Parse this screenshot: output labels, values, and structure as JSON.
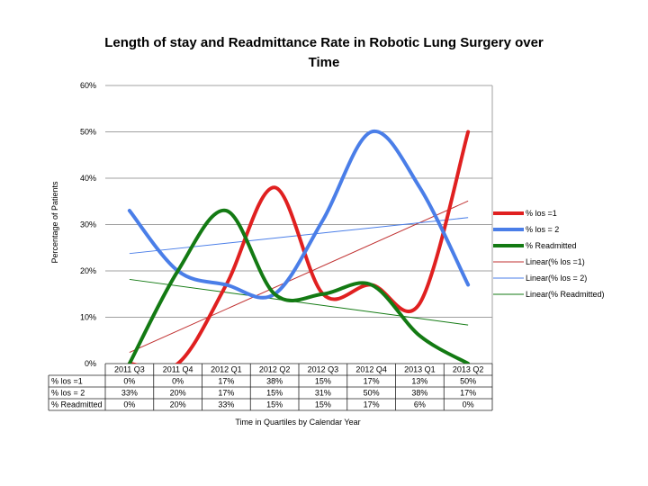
{
  "chart_data": {
    "type": "line",
    "title_line1": "Length of stay and Readmittance Rate in Robotic Lung Surgery over",
    "title_line2": "Time",
    "ylabel": "Percentage of Patients",
    "xlabel": "Time in Quartiles by Calendar Year",
    "ylim": [
      0,
      60
    ],
    "yticks": [
      "0%",
      "10%",
      "20%",
      "30%",
      "40%",
      "50%",
      "60%"
    ],
    "categories": [
      "2011 Q3",
      "2011 Q4",
      "2012 Q1",
      "2012 Q2",
      "2012 Q3",
      "2012 Q4",
      "2013 Q1",
      "2013 Q2"
    ],
    "series": [
      {
        "name": "% los =1",
        "color": "#e02020",
        "values": [
          0,
          0,
          17,
          38,
          15,
          17,
          13,
          50
        ],
        "table": [
          "0%",
          "0%",
          "17%",
          "38%",
          "15%",
          "17%",
          "13%",
          "50%"
        ]
      },
      {
        "name": "% los = 2",
        "color": "#4a7ee8",
        "values": [
          33,
          20,
          17,
          15,
          31,
          50,
          38,
          17
        ],
        "table": [
          "33%",
          "20%",
          "17%",
          "15%",
          "31%",
          "50%",
          "38%",
          "17%"
        ]
      },
      {
        "name": "% Readmitted",
        "color": "#137a13",
        "values": [
          0,
          20,
          33,
          15,
          15,
          17,
          6,
          0
        ],
        "table": [
          "0%",
          "20%",
          "33%",
          "15%",
          "15%",
          "17%",
          "6%",
          "0%"
        ]
      }
    ],
    "trendlines": [
      {
        "name": "Linear(% los =1)",
        "color": "#c03030"
      },
      {
        "name": "Linear(% los = 2)",
        "color": "#4a7ee8"
      },
      {
        "name": "Linear(% Readmitted)",
        "color": "#137a13"
      }
    ],
    "grid": true,
    "legend": "right"
  }
}
